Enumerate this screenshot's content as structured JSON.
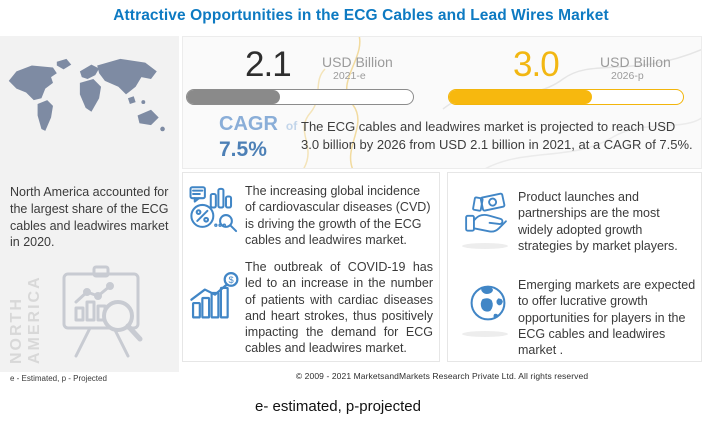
{
  "title": "Attractive Opportunities in the ECG Cables and Lead Wires Market",
  "colors": {
    "title_blue": "#0d7ac2",
    "accent_yellow": "#f2b712",
    "bar_gray": "#8a8a8a",
    "icon_blue": "#4186c6",
    "cagr_blue": "#4d80b6",
    "panel_gray": "#f2f2f2",
    "map_gray_blue": "#7e8ba3"
  },
  "region_panel": {
    "caption": "North America accounted for the largest share of the ECG cables and leadwires market in 2020.",
    "watermark": "NORTH AMERICA",
    "footnote": "e - Estimated, p - Projected"
  },
  "banner": {
    "stats": [
      {
        "value": "2.1",
        "unit": "USD Billion",
        "year_label": "2021-e",
        "fill_pct": 41
      },
      {
        "value": "3.0",
        "unit": "USD Billion",
        "year_label": "2026-p",
        "fill_pct": 61
      }
    ],
    "cagr": {
      "label": "CAGR",
      "of": "of",
      "value": "7.5%"
    },
    "summary": "The ECG cables and leadwires market is projected to reach USD 3.0 billion by 2026 from USD 2.1 billion in 2021, at a CAGR of 7.5%."
  },
  "insights": [
    {
      "icon": "analytics-report-icon",
      "text": "The increasing global incidence of cardiovascular diseases (CVD) is driving the growth of the ECG cables and leadwires market."
    },
    {
      "icon": "growth-bar-chart-icon",
      "text": "The outbreak of COVID-19 has led to an increase in the number of patients with cardiac diseases and heart strokes, thus positively impacting the demand for ECG cables and leadwires market."
    },
    {
      "icon": "hand-money-icon",
      "text": "Product launches and partnerships are the most widely adopted growth strategies by market players."
    },
    {
      "icon": "globe-icon",
      "text": "Emerging markets are expected to offer lucrative growth opportunities for players in the ECG cables and leadwires market ."
    }
  ],
  "footer": {
    "copyright": "© 2009 - 2021 MarketsandMarkets Research Private Ltd. All rights reserved"
  },
  "caption_below": "e- estimated, p-projected",
  "glyphs": {
    "dollar": "$"
  },
  "chart_data": {
    "type": "bar",
    "title": "ECG Cables and Lead Wires Market Size",
    "categories": [
      "2021-e",
      "2026-p"
    ],
    "values": [
      2.1,
      3.0
    ],
    "unit": "USD Billion",
    "cagr_pct": 7.5,
    "bar_fill_pct": [
      41,
      61
    ],
    "annotations": [
      "North America accounted for the largest share of the ECG cables and leadwires market in 2020.",
      "The ECG cables and leadwires market is projected to reach USD 3.0 billion by 2026 from USD 2.1 billion in 2021, at a CAGR of 7.5%."
    ]
  }
}
